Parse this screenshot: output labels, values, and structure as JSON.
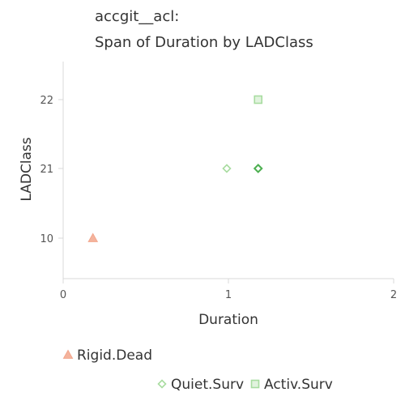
{
  "chart_data": {
    "type": "scatter",
    "title": [
      "accgit__acl:",
      "Span of Duration by LADClass"
    ],
    "xlabel": "Duration",
    "ylabel": "LADClass",
    "xlim": [
      0,
      2
    ],
    "x_ticks": [
      "0",
      "1",
      "2"
    ],
    "y_categories": [
      "10",
      "21",
      "22"
    ],
    "grid": false,
    "legend_position": "bottom",
    "series": [
      {
        "name": "Rigid.Dead",
        "marker": "triangle",
        "color": "#f2a68c",
        "points": [
          {
            "x": 0.18,
            "y": "10"
          }
        ]
      },
      {
        "name": "Quiet.Surv",
        "marker": "diamond",
        "color": "#a8dca0",
        "points": [
          {
            "x": 0.99,
            "y": "21"
          }
        ]
      },
      {
        "name": "Activ.Surv",
        "marker": "square",
        "color": "#a8dca0",
        "points": [
          {
            "x": 1.18,
            "y": "22"
          }
        ]
      }
    ],
    "overlap_point": {
      "x": 1.18,
      "y": "21",
      "color": "#4caf50",
      "marker": "diamond"
    }
  }
}
